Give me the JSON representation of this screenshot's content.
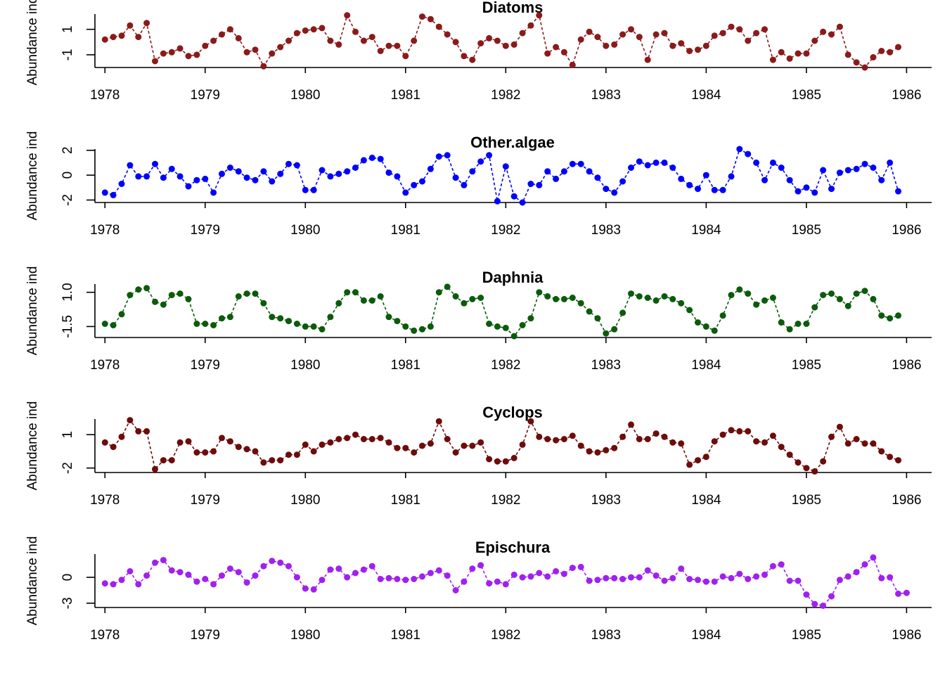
{
  "chart_data": [
    {
      "type": "line",
      "title": "Diatoms",
      "ylabel": "Abundance ind",
      "color": "#8B1A1A",
      "linestyle": "dashed",
      "xlim": [
        1977.9,
        1986.25
      ],
      "ylim": [
        -2.0,
        2.2
      ],
      "xticks": [
        1978,
        1979,
        1980,
        1981,
        1982,
        1983,
        1984,
        1985,
        1986
      ],
      "yticks": [
        -1,
        1
      ],
      "ytick_labels": [
        "-1",
        "1"
      ],
      "x_start": 1978.0,
      "x_step": 0.0833333,
      "values": [
        0.2,
        0.4,
        0.5,
        1.3,
        0.4,
        1.5,
        -1.5,
        -0.9,
        -0.8,
        -0.5,
        -1.1,
        -1.0,
        -0.3,
        0.1,
        0.6,
        1.0,
        0.3,
        -0.8,
        -0.6,
        -1.9,
        -0.9,
        -0.4,
        0.1,
        0.7,
        0.9,
        1.0,
        1.1,
        0.1,
        -0.2,
        2.1,
        0.8,
        0.1,
        0.4,
        -0.7,
        -0.3,
        -0.3,
        -1.1,
        0.1,
        2.0,
        1.8,
        1.2,
        0.6,
        0.0,
        -1.1,
        -1.4,
        -0.1,
        0.3,
        0.1,
        -0.3,
        -0.2,
        0.7,
        1.3,
        2.1,
        -0.9,
        -0.4,
        -0.8,
        -1.8,
        0.2,
        0.8,
        0.4,
        -0.3,
        -0.2,
        0.6,
        1.0,
        0.4,
        -1.4,
        0.6,
        0.7,
        -0.3,
        -0.1,
        -0.7,
        -0.6,
        -0.3,
        0.5,
        0.7,
        1.2,
        1.0,
        0.1,
        0.7,
        1.0,
        -1.4,
        -0.8,
        -1.3,
        -0.9,
        -0.9,
        0.1,
        0.8,
        0.6,
        1.2,
        -1.0,
        -1.6,
        -2.0,
        -1.2,
        -0.7,
        -0.8,
        -0.4
      ]
    },
    {
      "type": "line",
      "title": "Other.algae",
      "ylabel": "Abundance ind",
      "color": "#0000FF",
      "linestyle": "dashed",
      "xlim": [
        1977.9,
        1986.25
      ],
      "ylim": [
        -2.2,
        2.1
      ],
      "xticks": [
        1978,
        1979,
        1980,
        1981,
        1982,
        1983,
        1984,
        1985,
        1986
      ],
      "yticks": [
        -2,
        0,
        2
      ],
      "ytick_labels": [
        "-2",
        "0",
        "2"
      ],
      "x_start": 1978.0,
      "x_step": 0.0833333,
      "values": [
        -1.4,
        -1.6,
        -0.7,
        0.8,
        -0.1,
        -0.1,
        0.9,
        -0.2,
        0.5,
        -0.1,
        -0.9,
        -0.4,
        -0.3,
        -1.4,
        0.1,
        0.6,
        0.3,
        -0.2,
        -0.4,
        0.3,
        -0.5,
        0.1,
        0.9,
        0.8,
        -1.2,
        -1.2,
        0.4,
        -0.1,
        0.1,
        0.3,
        0.6,
        1.2,
        1.4,
        1.3,
        0.2,
        -0.1,
        -1.4,
        -0.8,
        -0.5,
        0.5,
        1.5,
        1.6,
        -0.2,
        -0.8,
        0.3,
        1.1,
        1.6,
        -2.1,
        0.7,
        -1.7,
        -2.2,
        -0.7,
        -0.8,
        0.3,
        -0.3,
        0.3,
        0.9,
        0.9,
        0.3,
        -0.2,
        -1.1,
        -1.4,
        -0.5,
        0.6,
        1.1,
        0.8,
        1.0,
        1.0,
        0.6,
        -0.3,
        -0.8,
        -1.1,
        0.0,
        -1.2,
        -1.2,
        -0.1,
        2.1,
        1.7,
        1.0,
        -0.4,
        1.0,
        0.6,
        -0.4,
        -1.3,
        -1.0,
        -1.4,
        0.4,
        -1.1,
        0.2,
        0.4,
        0.5,
        0.9,
        0.6,
        -0.4,
        1.0,
        -1.3
      ]
    },
    {
      "type": "line",
      "title": "Daphnia",
      "ylabel": "Abundance ind",
      "color": "#0B5B0B",
      "linestyle": "dashed",
      "xlim": [
        1977.9,
        1986.25
      ],
      "ylim": [
        -2.3,
        1.6
      ],
      "xticks": [
        1978,
        1979,
        1980,
        1981,
        1982,
        1983,
        1984,
        1985,
        1986
      ],
      "yticks": [
        -1.5,
        1.0
      ],
      "ytick_labels": [
        "-1.5",
        "1.0"
      ],
      "x_start": 1978.0,
      "x_step": 0.0833333,
      "values": [
        -1.3,
        -1.4,
        -0.6,
        0.8,
        1.2,
        1.3,
        0.3,
        0.1,
        0.8,
        0.9,
        0.5,
        -1.3,
        -1.3,
        -1.4,
        -0.9,
        -0.8,
        0.7,
        0.9,
        0.9,
        0.2,
        -0.8,
        -0.9,
        -1.1,
        -1.3,
        -1.5,
        -1.5,
        -1.7,
        -0.8,
        0.2,
        1.0,
        1.0,
        0.4,
        0.4,
        0.7,
        -0.8,
        -1.1,
        -1.5,
        -1.8,
        -1.7,
        -1.5,
        1.0,
        1.4,
        0.7,
        0.2,
        0.5,
        0.6,
        -1.3,
        -1.5,
        -1.6,
        -2.2,
        -1.4,
        -0.9,
        1.0,
        0.7,
        0.5,
        0.5,
        0.6,
        0.2,
        -0.4,
        -0.9,
        -2.0,
        -1.7,
        -0.5,
        0.9,
        0.7,
        0.6,
        0.4,
        0.7,
        0.5,
        0.2,
        -0.3,
        -1.2,
        -1.5,
        -1.8,
        -0.7,
        0.8,
        1.2,
        0.9,
        0.1,
        0.4,
        0.6,
        -1.2,
        -1.7,
        -1.3,
        -1.3,
        -0.1,
        0.8,
        0.9,
        0.5,
        0.0,
        0.9,
        1.1,
        0.5,
        -0.7,
        -0.9,
        -0.7
      ]
    },
    {
      "type": "line",
      "title": "Cyclops",
      "ylabel": "Abundance ind",
      "color": "#6E0B0B",
      "linestyle": "dashed",
      "xlim": [
        1977.9,
        1986.25
      ],
      "ylim": [
        -2.4,
        2.4
      ],
      "xticks": [
        1978,
        1979,
        1980,
        1981,
        1982,
        1983,
        1984,
        1985,
        1986
      ],
      "yticks": [
        -2,
        1
      ],
      "ytick_labels": [
        "-2",
        "1"
      ],
      "x_start": 1978.0,
      "x_step": 0.0833333,
      "values": [
        0.3,
        -0.1,
        0.8,
        2.3,
        1.3,
        1.3,
        -2.1,
        -1.3,
        -1.3,
        0.3,
        0.4,
        -0.6,
        -0.6,
        -0.5,
        0.7,
        0.4,
        -0.1,
        -0.3,
        -0.5,
        -1.5,
        -1.3,
        -1.3,
        -0.8,
        -0.8,
        0.1,
        -0.5,
        0.1,
        0.3,
        0.6,
        0.7,
        1.0,
        0.6,
        0.6,
        0.7,
        0.3,
        -0.2,
        -0.2,
        -0.6,
        0.0,
        0.2,
        2.2,
        0.6,
        -0.6,
        0.0,
        0.0,
        0.3,
        -1.2,
        -1.4,
        -1.4,
        -1.1,
        0.1,
        2.2,
        0.8,
        0.6,
        0.5,
        0.6,
        0.9,
        0.0,
        -0.5,
        -0.6,
        -0.4,
        -0.2,
        0.8,
        1.9,
        0.6,
        0.6,
        1.1,
        0.8,
        0.3,
        0.2,
        -1.7,
        -1.3,
        -1.0,
        0.4,
        1.0,
        1.4,
        1.3,
        1.3,
        0.4,
        0.3,
        0.9,
        -0.1,
        -0.8,
        -1.5,
        -2.0,
        -2.3,
        -1.4,
        0.8,
        1.7,
        0.2,
        0.6,
        0.2,
        0.2,
        -0.5,
        -1.0,
        -1.3
      ]
    },
    {
      "type": "line",
      "title": "Epischura",
      "ylabel": "Abundance ind",
      "color": "#A020F0",
      "linestyle": "dashed",
      "xlim": [
        1977.9,
        1986.25
      ],
      "ylim": [
        -3.5,
        2.7
      ],
      "xticks": [
        1978,
        1979,
        1980,
        1981,
        1982,
        1983,
        1984,
        1985,
        1986
      ],
      "yticks": [
        -3,
        0
      ],
      "ytick_labels": [
        "-3",
        "0"
      ],
      "x_start": 1978.0,
      "x_step": 0.0833333,
      "values": [
        -0.7,
        -0.8,
        -0.3,
        0.7,
        -0.8,
        0.2,
        1.7,
        2.0,
        0.8,
        0.6,
        0.3,
        -0.5,
        -0.2,
        -0.8,
        0.2,
        1.0,
        0.6,
        -0.6,
        0.2,
        1.3,
        1.9,
        1.7,
        1.3,
        0.0,
        -1.3,
        -1.4,
        -0.3,
        0.9,
        1.0,
        0.0,
        0.5,
        0.9,
        1.3,
        -0.2,
        -0.1,
        -0.2,
        -0.3,
        -0.2,
        0.1,
        0.5,
        0.8,
        0.2,
        -1.5,
        -0.5,
        1.0,
        1.4,
        -0.7,
        -0.5,
        -0.8,
        0.3,
        0.0,
        0.1,
        0.5,
        0.1,
        0.7,
        0.4,
        1.1,
        1.2,
        -0.4,
        -0.3,
        -0.1,
        -0.1,
        -0.2,
        0.0,
        0.0,
        0.8,
        0.2,
        -0.4,
        -0.1,
        1.0,
        -0.2,
        -0.3,
        -0.5,
        -0.5,
        0.1,
        -0.1,
        0.4,
        -0.2,
        0.1,
        0.3,
        1.3,
        1.5,
        -0.4,
        -0.4,
        -2.0,
        -3.1,
        -3.3,
        -2.2,
        -0.3,
        0.1,
        0.6,
        1.5,
        2.3,
        -0.1,
        0.0,
        -1.9,
        -1.8
      ]
    }
  ]
}
